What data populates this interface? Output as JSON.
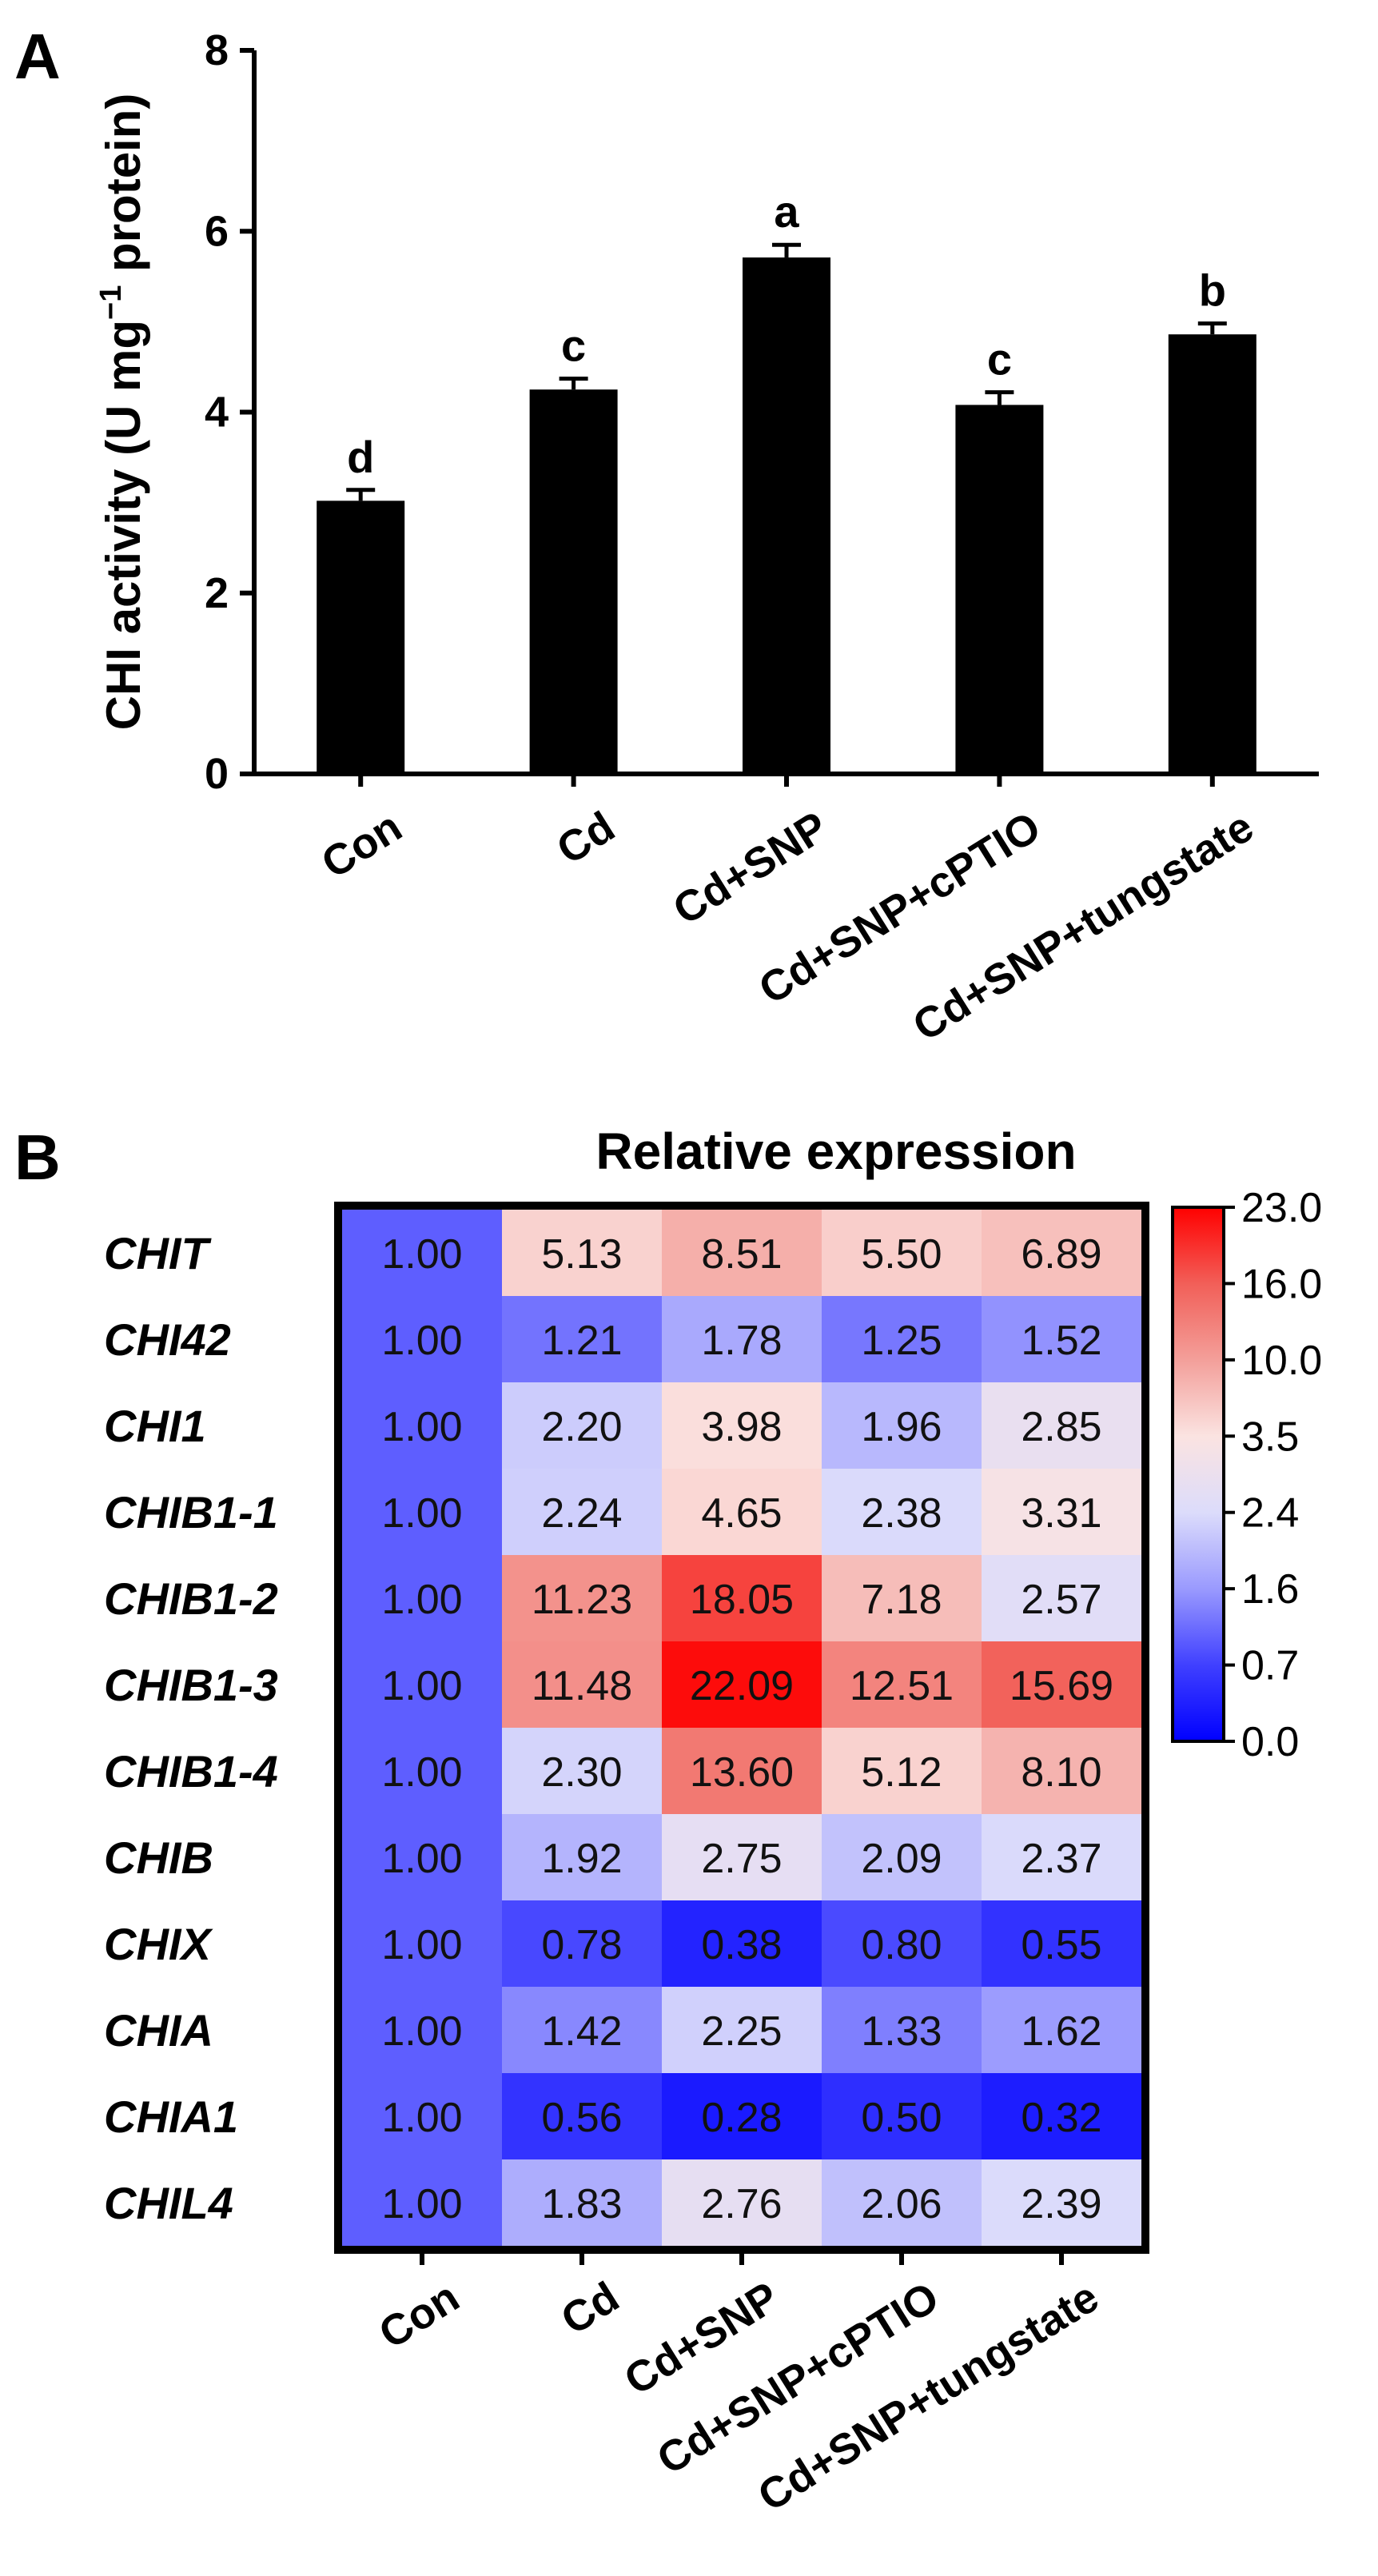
{
  "chart_data": [
    {
      "panel": "A",
      "type": "bar",
      "categories": [
        "Con",
        "Cd",
        "Cd+SNP",
        "Cd+SNP+cPTIO",
        "Cd+SNP+tungstate"
      ],
      "values": [
        3.02,
        4.25,
        5.71,
        4.08,
        4.86
      ],
      "errors": [
        0.12,
        0.12,
        0.14,
        0.14,
        0.12
      ],
      "significance": [
        "d",
        "c",
        "a",
        "c",
        "b"
      ],
      "ylabel": {
        "pre": "CHI activity (U mg",
        "sup": "−1",
        "post": " protein)"
      },
      "ylim": [
        0,
        8
      ],
      "yticks": [
        0,
        2,
        4,
        6,
        8
      ],
      "bar_color": "#000000"
    },
    {
      "panel": "B",
      "type": "heatmap",
      "title": "Relative expression",
      "columns": [
        "Con",
        "Cd",
        "Cd+SNP",
        "Cd+SNP+cPTIO",
        "Cd+SNP+tungstate"
      ],
      "rows": [
        "CHIT",
        "CHI42",
        "CHI1",
        "CHIB1-1",
        "CHIB1-2",
        "CHIB1-3",
        "CHIB1-4",
        "CHIB",
        "CHIX",
        "CHIA",
        "CHIA1",
        "CHIL4"
      ],
      "values": [
        [
          "1.00",
          "5.13",
          "8.51",
          "5.50",
          "6.89"
        ],
        [
          "1.00",
          "1.21",
          "1.78",
          "1.25",
          "1.52"
        ],
        [
          "1.00",
          "2.20",
          "3.98",
          "1.96",
          "2.85"
        ],
        [
          "1.00",
          "2.24",
          "4.65",
          "2.38",
          "3.31"
        ],
        [
          "1.00",
          "11.23",
          "18.05",
          "7.18",
          "2.57"
        ],
        [
          "1.00",
          "11.48",
          "22.09",
          "12.51",
          "15.69"
        ],
        [
          "1.00",
          "2.30",
          "13.60",
          "5.12",
          "8.10"
        ],
        [
          "1.00",
          "1.92",
          "2.75",
          "2.09",
          "2.37"
        ],
        [
          "1.00",
          "0.78",
          "0.38",
          "0.80",
          "0.55"
        ],
        [
          "1.00",
          "1.42",
          "2.25",
          "1.33",
          "1.62"
        ],
        [
          "1.00",
          "0.56",
          "0.28",
          "0.50",
          "0.32"
        ],
        [
          "1.00",
          "1.83",
          "2.76",
          "2.06",
          "2.39"
        ]
      ],
      "colorbar": {
        "ticks": [
          "23.0",
          "16.0",
          "10.0",
          "3.5",
          "2.4",
          "1.6",
          "0.7",
          "0.0"
        ],
        "stops": [
          {
            "value": 0.0,
            "color": "#0000ff"
          },
          {
            "value": 0.7,
            "color": "#4040ff"
          },
          {
            "value": 1.6,
            "color": "#9a9afe"
          },
          {
            "value": 2.4,
            "color": "#dcdcfb"
          },
          {
            "value": 3.5,
            "color": "#fbe3e1"
          },
          {
            "value": 10.0,
            "color": "#f39f9a"
          },
          {
            "value": 16.0,
            "color": "#f25f58"
          },
          {
            "value": 23.0,
            "color": "#ff0000"
          }
        ]
      }
    }
  ]
}
